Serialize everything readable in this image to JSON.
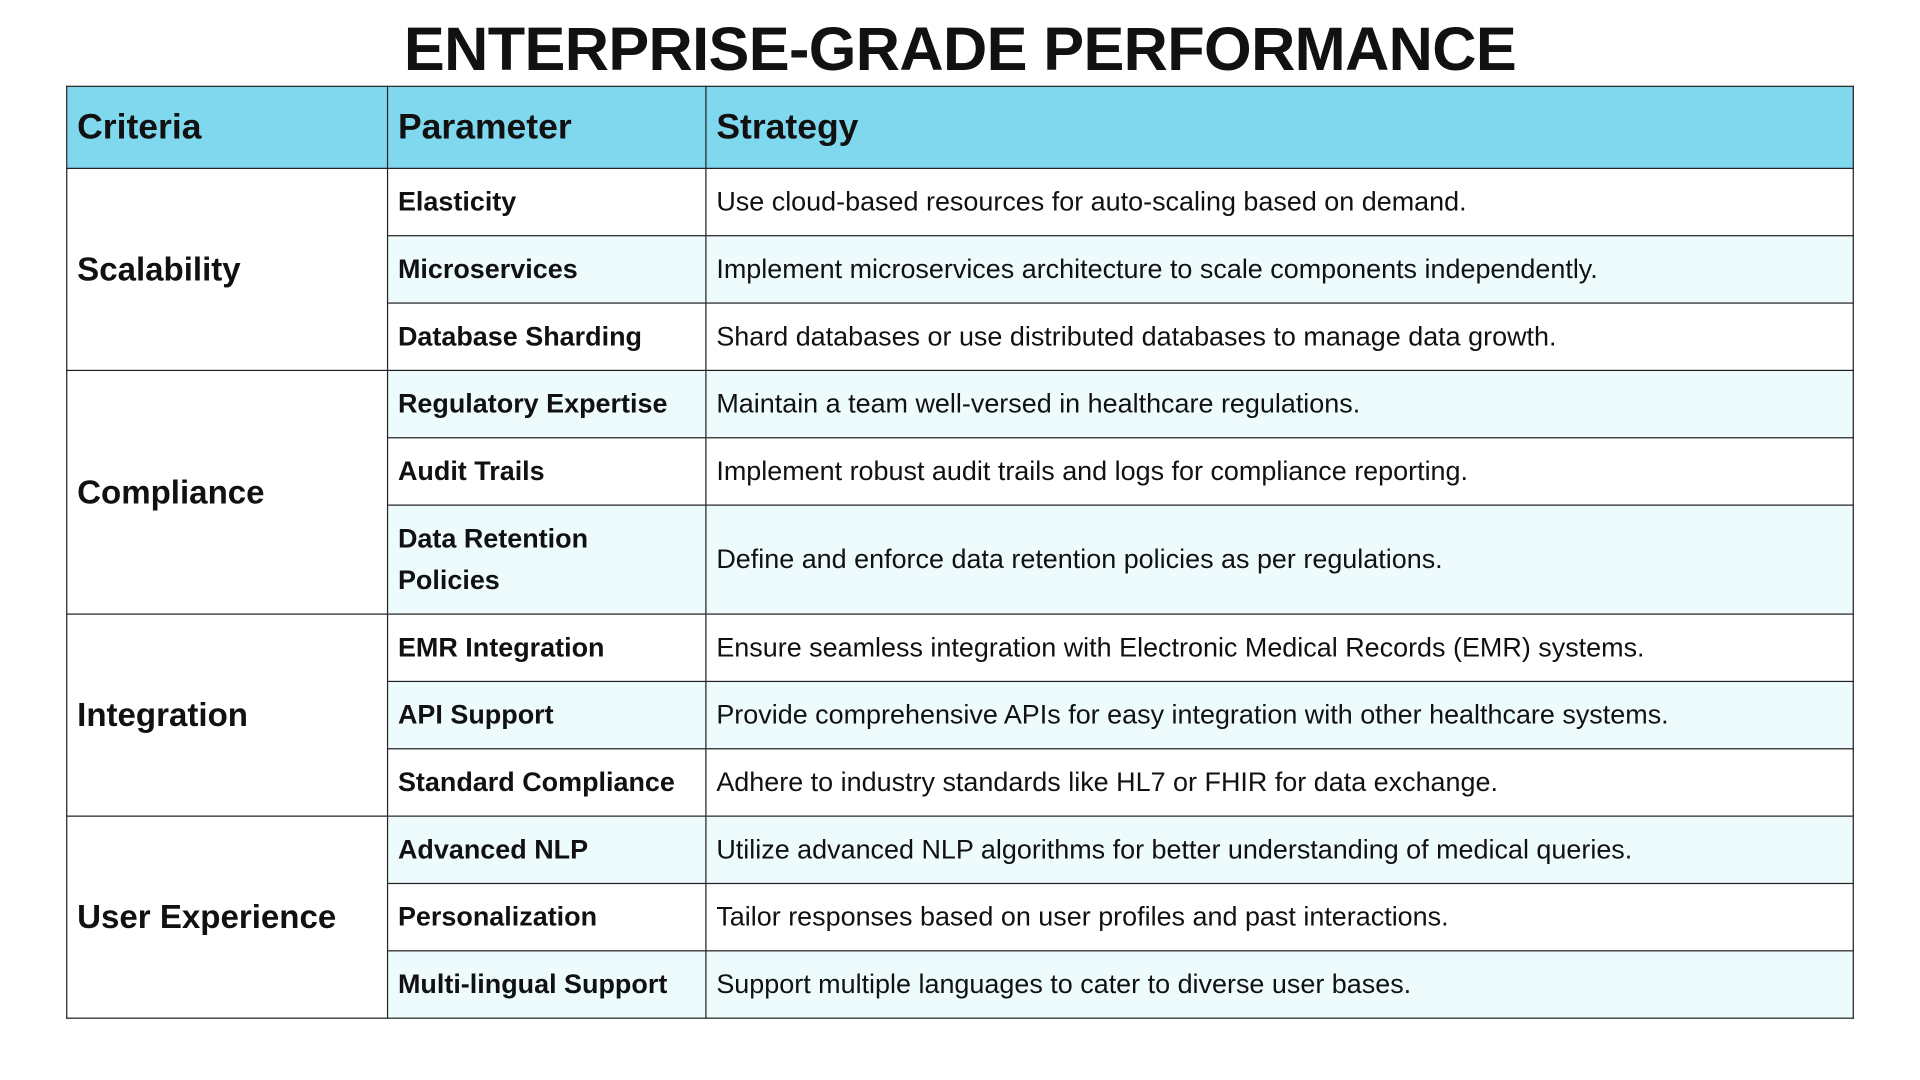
{
  "title": "ENTERPRISE-GRADE PERFORMANCE",
  "colors": {
    "header_bg": "#7fd8ee",
    "alt_row_bg": "#eefbfd"
  },
  "headers": [
    "Criteria",
    "Parameter",
    "Strategy"
  ],
  "groups": [
    {
      "criteria": "Scalability",
      "rows": [
        {
          "parameter": "Elasticity",
          "strategy": "Use cloud-based resources for auto-scaling based on demand."
        },
        {
          "parameter": "Microservices",
          "strategy": "Implement microservices architecture to scale components independently."
        },
        {
          "parameter": "Database Sharding",
          "strategy": "Shard databases or use distributed databases to manage data growth."
        }
      ]
    },
    {
      "criteria": "Compliance",
      "rows": [
        {
          "parameter": "Regulatory Expertise",
          "strategy": "Maintain a team well-versed in healthcare regulations."
        },
        {
          "parameter": "Audit Trails",
          "strategy": "Implement robust audit trails and logs for compliance reporting."
        },
        {
          "parameter": "Data Retention Policies",
          "strategy": "Define and enforce data retention policies as per regulations."
        }
      ]
    },
    {
      "criteria": "Integration",
      "rows": [
        {
          "parameter": "EMR Integration",
          "strategy": "Ensure seamless integration with Electronic Medical Records (EMR) systems."
        },
        {
          "parameter": "API Support",
          "strategy": "Provide comprehensive APIs for easy integration with other healthcare systems."
        },
        {
          "parameter": "Standard Compliance",
          "strategy": "Adhere to industry standards like HL7 or FHIR for data exchange."
        }
      ]
    },
    {
      "criteria": "User Experience",
      "rows": [
        {
          "parameter": "Advanced NLP",
          "strategy": "Utilize advanced NLP algorithms for better understanding of medical queries."
        },
        {
          "parameter": "Personalization",
          "strategy": "Tailor responses based on user profiles and past interactions."
        },
        {
          "parameter": "Multi-lingual Support",
          "strategy": "Support multiple languages to cater to diverse user bases."
        }
      ]
    }
  ]
}
